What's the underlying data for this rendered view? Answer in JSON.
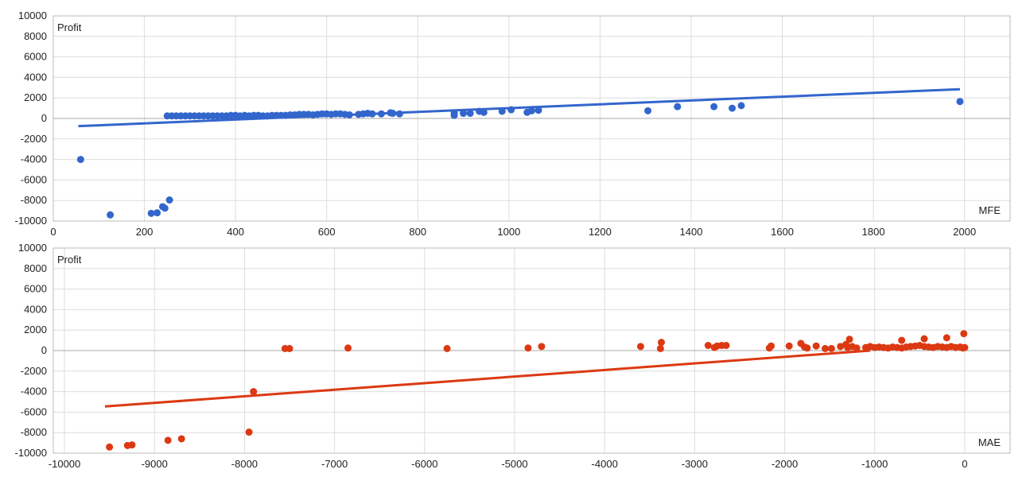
{
  "chart_data": [
    {
      "type": "scatter",
      "ylabel": "Profit",
      "xlabel": "MFE",
      "xlim": [
        0,
        2100
      ],
      "ylim": [
        -10000,
        10000
      ],
      "xticks": [
        0,
        200,
        400,
        600,
        800,
        1000,
        1200,
        1400,
        1600,
        1800,
        2000
      ],
      "yticks": [
        10000,
        8000,
        6000,
        4000,
        2000,
        0,
        -2000,
        -4000,
        -6000,
        -8000,
        -10000
      ],
      "grid": true,
      "color": "#3366cc",
      "points": [
        [
          60,
          -4000
        ],
        [
          125,
          -9400
        ],
        [
          215,
          -9250
        ],
        [
          228,
          -9200
        ],
        [
          240,
          -8600
        ],
        [
          245,
          -8750
        ],
        [
          255,
          -7950
        ],
        [
          250,
          250
        ],
        [
          260,
          250
        ],
        [
          270,
          250
        ],
        [
          280,
          250
        ],
        [
          290,
          250
        ],
        [
          300,
          250
        ],
        [
          310,
          250
        ],
        [
          320,
          250
        ],
        [
          330,
          250
        ],
        [
          340,
          250
        ],
        [
          350,
          250
        ],
        [
          360,
          250
        ],
        [
          370,
          250
        ],
        [
          380,
          250
        ],
        [
          390,
          300
        ],
        [
          400,
          300
        ],
        [
          410,
          250
        ],
        [
          420,
          300
        ],
        [
          430,
          250
        ],
        [
          440,
          300
        ],
        [
          450,
          300
        ],
        [
          460,
          250
        ],
        [
          470,
          250
        ],
        [
          480,
          300
        ],
        [
          490,
          300
        ],
        [
          500,
          300
        ],
        [
          510,
          300
        ],
        [
          520,
          350
        ],
        [
          530,
          350
        ],
        [
          540,
          400
        ],
        [
          550,
          400
        ],
        [
          560,
          400
        ],
        [
          570,
          350
        ],
        [
          580,
          400
        ],
        [
          590,
          450
        ],
        [
          600,
          450
        ],
        [
          610,
          400
        ],
        [
          620,
          450
        ],
        [
          630,
          450
        ],
        [
          640,
          400
        ],
        [
          650,
          350
        ],
        [
          670,
          400
        ],
        [
          680,
          450
        ],
        [
          690,
          500
        ],
        [
          700,
          450
        ],
        [
          720,
          450
        ],
        [
          740,
          550
        ],
        [
          745,
          500
        ],
        [
          760,
          450
        ],
        [
          880,
          500
        ],
        [
          880,
          300
        ],
        [
          900,
          500
        ],
        [
          915,
          500
        ],
        [
          935,
          700
        ],
        [
          945,
          600
        ],
        [
          985,
          700
        ],
        [
          1005,
          850
        ],
        [
          1040,
          600
        ],
        [
          1050,
          750
        ],
        [
          1065,
          800
        ],
        [
          1305,
          750
        ],
        [
          1370,
          1150
        ],
        [
          1450,
          1150
        ],
        [
          1490,
          1000
        ],
        [
          1510,
          1250
        ],
        [
          1990,
          1650
        ]
      ],
      "trendline": [
        [
          55,
          -750
        ],
        [
          1990,
          2850
        ]
      ]
    },
    {
      "type": "scatter",
      "ylabel": "Profit",
      "xlabel": "MAE",
      "xlim": [
        -10124,
        504
      ],
      "ylim": [
        -10000,
        10000
      ],
      "xticks": [
        -10000,
        -9000,
        -8000,
        -7000,
        -6000,
        -5000,
        -4000,
        -3000,
        -2000,
        -1000,
        0
      ],
      "yticks": [
        10000,
        8000,
        6000,
        4000,
        2000,
        0,
        -2000,
        -4000,
        -6000,
        -8000,
        -10000
      ],
      "grid": true,
      "color": "#dc3912",
      "points": [
        [
          -9500,
          -9400
        ],
        [
          -9300,
          -9250
        ],
        [
          -9250,
          -9200
        ],
        [
          -8850,
          -8750
        ],
        [
          -8700,
          -8600
        ],
        [
          -7950,
          -7950
        ],
        [
          -7900,
          -4000
        ],
        [
          -7550,
          200
        ],
        [
          -7500,
          200
        ],
        [
          -6850,
          250
        ],
        [
          -5750,
          200
        ],
        [
          -4850,
          250
        ],
        [
          -4700,
          400
        ],
        [
          -3600,
          400
        ],
        [
          -3380,
          200
        ],
        [
          -3370,
          800
        ],
        [
          -2850,
          500
        ],
        [
          -2780,
          300
        ],
        [
          -2750,
          450
        ],
        [
          -2700,
          500
        ],
        [
          -2650,
          500
        ],
        [
          -2170,
          250
        ],
        [
          -2150,
          450
        ],
        [
          -1950,
          450
        ],
        [
          -1820,
          700
        ],
        [
          -1780,
          350
        ],
        [
          -1750,
          250
        ],
        [
          -1650,
          450
        ],
        [
          -1550,
          200
        ],
        [
          -1480,
          200
        ],
        [
          -1380,
          400
        ],
        [
          -1320,
          600
        ],
        [
          -1300,
          300
        ],
        [
          -1280,
          1100
        ],
        [
          -1250,
          400
        ],
        [
          -1200,
          250
        ],
        [
          -1100,
          300
        ],
        [
          -1050,
          400
        ],
        [
          -1000,
          300
        ],
        [
          -950,
          350
        ],
        [
          -900,
          300
        ],
        [
          -850,
          250
        ],
        [
          -800,
          350
        ],
        [
          -750,
          300
        ],
        [
          -700,
          1000
        ],
        [
          -700,
          250
        ],
        [
          -650,
          350
        ],
        [
          -600,
          400
        ],
        [
          -550,
          450
        ],
        [
          -500,
          500
        ],
        [
          -450,
          1150
        ],
        [
          -450,
          400
        ],
        [
          -400,
          350
        ],
        [
          -350,
          300
        ],
        [
          -300,
          400
        ],
        [
          -250,
          350
        ],
        [
          -200,
          1250
        ],
        [
          -200,
          300
        ],
        [
          -150,
          400
        ],
        [
          -100,
          300
        ],
        [
          -50,
          350
        ],
        [
          -20,
          250
        ],
        [
          -10,
          1650
        ],
        [
          0,
          300
        ]
      ],
      "trendline": [
        [
          -9550,
          -5450
        ],
        [
          -1050,
          0
        ]
      ]
    }
  ]
}
